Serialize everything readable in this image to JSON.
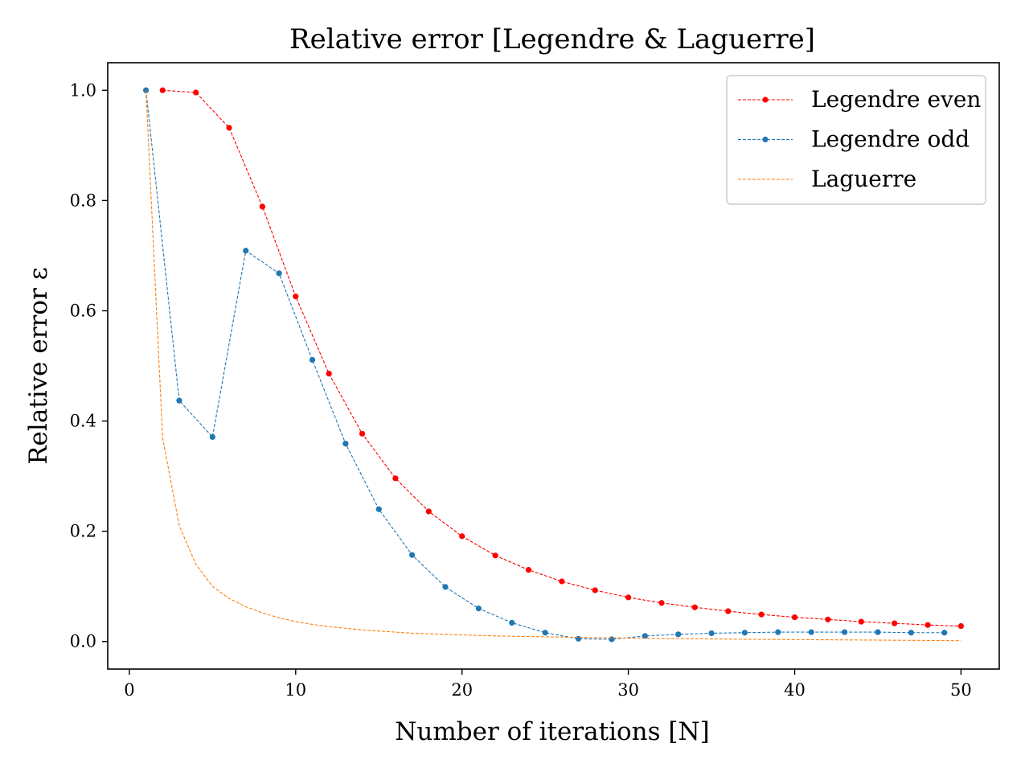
{
  "chart_data": {
    "type": "line",
    "title": "Relative error [Legendre & Laguerre]",
    "xlabel": "Number of iterations [N]",
    "ylabel": "Relative error ε",
    "xlim": [
      -1.3,
      52.3
    ],
    "ylim": [
      -0.05,
      1.05
    ],
    "xticks": [
      0,
      10,
      20,
      30,
      40,
      50
    ],
    "yticks": [
      0.0,
      0.2,
      0.4,
      0.6,
      0.8,
      1.0
    ],
    "xtick_labels": [
      "0",
      "10",
      "20",
      "30",
      "40",
      "50"
    ],
    "ytick_labels": [
      "0.0",
      "0.2",
      "0.4",
      "0.6",
      "0.8",
      "1.0"
    ],
    "grid": false,
    "legend_position": "top-right",
    "series": [
      {
        "name": "Legendre even",
        "color": "#ff0000",
        "line_style": "dashed",
        "markers": true,
        "x": [
          2,
          4,
          6,
          8,
          10,
          12,
          14,
          16,
          18,
          20,
          22,
          24,
          26,
          28,
          30,
          32,
          34,
          36,
          38,
          40,
          42,
          44,
          46,
          48,
          50
        ],
        "y": [
          1.0,
          0.996,
          0.932,
          0.789,
          0.626,
          0.486,
          0.377,
          0.296,
          0.236,
          0.191,
          0.156,
          0.13,
          0.109,
          0.093,
          0.08,
          0.07,
          0.062,
          0.055,
          0.049,
          0.044,
          0.04,
          0.036,
          0.033,
          0.03,
          0.028
        ]
      },
      {
        "name": "Legendre odd",
        "color": "#1f77b4",
        "line_style": "dashed",
        "markers": true,
        "x": [
          1,
          3,
          5,
          7,
          9,
          11,
          13,
          15,
          17,
          19,
          21,
          23,
          25,
          27,
          29,
          31,
          33,
          35,
          37,
          39,
          41,
          43,
          45,
          47,
          49
        ],
        "y": [
          1.0,
          0.437,
          0.371,
          0.709,
          0.668,
          0.511,
          0.359,
          0.24,
          0.157,
          0.099,
          0.06,
          0.034,
          0.016,
          0.005,
          0.004,
          0.01,
          0.013,
          0.015,
          0.016,
          0.017,
          0.017,
          0.017,
          0.017,
          0.016,
          0.016
        ]
      },
      {
        "name": "Laguerre",
        "color": "#ff7f0e",
        "line_style": "dashed",
        "markers": false,
        "x": [
          1,
          2,
          3,
          4,
          5,
          6,
          7,
          8,
          9,
          10,
          11,
          12,
          13,
          14,
          15,
          16,
          17,
          18,
          19,
          20,
          21,
          22,
          23,
          24,
          25,
          26,
          27,
          28,
          29,
          30,
          31,
          32,
          33,
          34,
          35,
          36,
          37,
          38,
          39,
          40,
          41,
          42,
          43,
          44,
          45,
          46,
          47,
          48,
          49,
          50
        ],
        "y": [
          1.0,
          0.37,
          0.21,
          0.14,
          0.1,
          0.078,
          0.063,
          0.052,
          0.043,
          0.036,
          0.031,
          0.027,
          0.024,
          0.021,
          0.019,
          0.017,
          0.015,
          0.014,
          0.013,
          0.012,
          0.011,
          0.01,
          0.0095,
          0.009,
          0.0085,
          0.008,
          0.0075,
          0.007,
          0.0066,
          0.0062,
          0.0058,
          0.0055,
          0.0052,
          0.0049,
          0.0046,
          0.0044,
          0.0041,
          0.0039,
          0.0037,
          0.0035,
          0.0033,
          0.0031,
          0.0029,
          0.0027,
          0.0025,
          0.0023,
          0.0021,
          0.0019,
          0.0017,
          0.0015
        ]
      }
    ]
  }
}
